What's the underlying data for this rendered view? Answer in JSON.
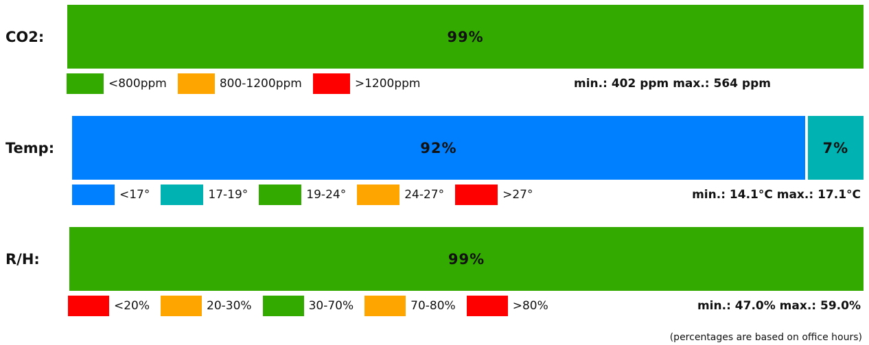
{
  "chart_data": [
    {
      "type": "bar",
      "label": "CO2:",
      "segments": [
        {
          "value": "99%",
          "share": 99,
          "color": "#33aa00"
        }
      ],
      "legend": [
        {
          "label": "<800ppm",
          "color": "#33aa00"
        },
        {
          "label": "800-1200ppm",
          "color": "#ffa500"
        },
        {
          "label": ">1200ppm",
          "color": "#ff0000"
        }
      ],
      "minmax": "min.: 402 ppm max.: 564 ppm"
    },
    {
      "type": "bar",
      "label": "Temp:",
      "segments": [
        {
          "value": "92%",
          "share": 92,
          "color": "#0080ff"
        },
        {
          "value": "7%",
          "share": 7,
          "color": "#00b2b2"
        }
      ],
      "legend": [
        {
          "label": "<17°",
          "color": "#0080ff"
        },
        {
          "label": "17-19°",
          "color": "#00b2b2"
        },
        {
          "label": "19-24°",
          "color": "#33aa00"
        },
        {
          "label": "24-27°",
          "color": "#ffa500"
        },
        {
          "label": ">27°",
          "color": "#ff0000"
        }
      ],
      "minmax": "min.: 14.1°C max.: 17.1°C"
    },
    {
      "type": "bar",
      "label": "R/H:",
      "segments": [
        {
          "value": "99%",
          "share": 99,
          "color": "#33aa00"
        }
      ],
      "legend": [
        {
          "label": "<20%",
          "color": "#ff0000"
        },
        {
          "label": "20-30%",
          "color": "#ffa500"
        },
        {
          "label": "30-70%",
          "color": "#33aa00"
        },
        {
          "label": "70-80%",
          "color": "#ffa500"
        },
        {
          "label": ">80%",
          "color": "#ff0000"
        }
      ],
      "minmax": "min.: 47.0% max.: 59.0%"
    }
  ],
  "footnote": "(percentages are based on office hours)"
}
